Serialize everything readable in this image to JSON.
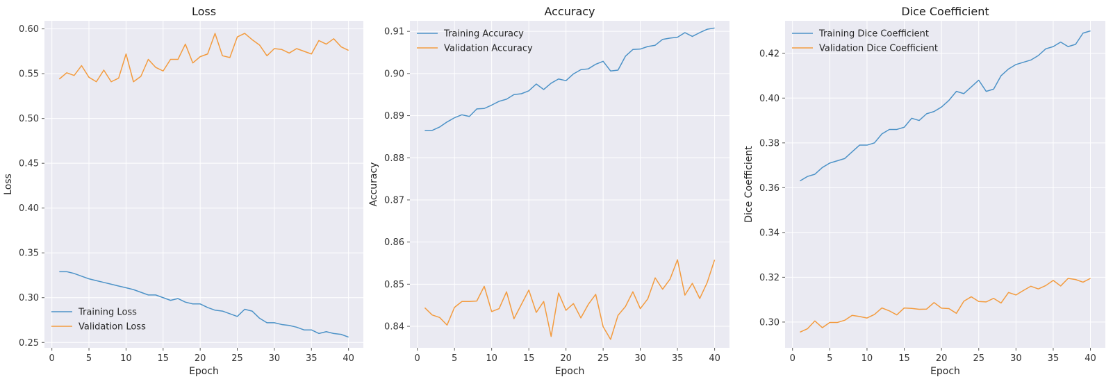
{
  "colors": {
    "training": "#4c92c7",
    "validation": "#f39b3e",
    "plot_background": "#eaeaf2",
    "grid": "#ffffff"
  },
  "chart_data": [
    {
      "type": "line",
      "title": "Loss",
      "xlabel": "Epoch",
      "ylabel": "Loss",
      "xlim": [
        -1,
        42
      ],
      "ylim": [
        0.244,
        0.609
      ],
      "xticks": [
        0,
        5,
        10,
        15,
        20,
        25,
        30,
        35,
        40
      ],
      "yticks": [
        0.25,
        0.3,
        0.35,
        0.4,
        0.45,
        0.5,
        0.55,
        0.6
      ],
      "ytick_decimals": 2,
      "grid": true,
      "legend_position": "lower-left",
      "x": [
        1,
        2,
        3,
        4,
        5,
        6,
        7,
        8,
        9,
        10,
        11,
        12,
        13,
        14,
        15,
        16,
        17,
        18,
        19,
        20,
        21,
        22,
        23,
        24,
        25,
        26,
        27,
        28,
        29,
        30,
        31,
        32,
        33,
        34,
        35,
        36,
        37,
        38,
        39,
        40
      ],
      "series": [
        {
          "name": "Training Loss",
          "color_key": "training",
          "values": [
            0.329,
            0.329,
            0.327,
            0.324,
            0.321,
            0.319,
            0.317,
            0.315,
            0.313,
            0.311,
            0.309,
            0.306,
            0.303,
            0.303,
            0.3,
            0.297,
            0.299,
            0.295,
            0.293,
            0.293,
            0.289,
            0.286,
            0.285,
            0.282,
            0.279,
            0.287,
            0.285,
            0.277,
            0.272,
            0.272,
            0.27,
            0.269,
            0.267,
            0.264,
            0.264,
            0.26,
            0.262,
            0.26,
            0.259,
            0.256
          ]
        },
        {
          "name": "Validation Loss",
          "color_key": "validation",
          "values": [
            0.544,
            0.551,
            0.548,
            0.559,
            0.546,
            0.541,
            0.554,
            0.541,
            0.545,
            0.572,
            0.541,
            0.547,
            0.566,
            0.557,
            0.553,
            0.566,
            0.566,
            0.583,
            0.562,
            0.569,
            0.572,
            0.595,
            0.57,
            0.568,
            0.591,
            0.595,
            0.588,
            0.582,
            0.57,
            0.578,
            0.577,
            0.573,
            0.578,
            0.575,
            0.572,
            0.587,
            0.583,
            0.589,
            0.58,
            0.576
          ]
        }
      ]
    },
    {
      "type": "line",
      "title": "Accuracy",
      "xlabel": "Epoch",
      "ylabel": "Accuracy",
      "xlim": [
        -1,
        42
      ],
      "ylim": [
        0.8349,
        0.9125
      ],
      "xticks": [
        0,
        5,
        10,
        15,
        20,
        25,
        30,
        35,
        40
      ],
      "yticks": [
        0.84,
        0.85,
        0.86,
        0.87,
        0.88,
        0.89,
        0.9,
        0.91
      ],
      "ytick_decimals": 2,
      "grid": true,
      "legend_position": "upper-left",
      "x": [
        1,
        2,
        3,
        4,
        5,
        6,
        7,
        8,
        9,
        10,
        11,
        12,
        13,
        14,
        15,
        16,
        17,
        18,
        19,
        20,
        21,
        22,
        23,
        24,
        25,
        26,
        27,
        28,
        29,
        30,
        31,
        32,
        33,
        34,
        35,
        36,
        37,
        38,
        39,
        40
      ],
      "series": [
        {
          "name": "Training Accuracy",
          "color_key": "training",
          "values": [
            0.8865,
            0.8865,
            0.8873,
            0.8885,
            0.8895,
            0.8902,
            0.8898,
            0.8916,
            0.8917,
            0.8925,
            0.8934,
            0.8939,
            0.895,
            0.8952,
            0.8959,
            0.8975,
            0.8962,
            0.8977,
            0.8987,
            0.8983,
            0.8999,
            0.9009,
            0.9011,
            0.9022,
            0.9029,
            0.9006,
            0.9008,
            0.9041,
            0.9057,
            0.9058,
            0.9064,
            0.9067,
            0.9081,
            0.9084,
            0.9086,
            0.9097,
            0.9088,
            0.9097,
            0.9105,
            0.9108
          ]
        },
        {
          "name": "Validation Accuracy",
          "color_key": "validation",
          "values": [
            0.8444,
            0.8427,
            0.8421,
            0.8403,
            0.8445,
            0.8459,
            0.8459,
            0.846,
            0.8495,
            0.8435,
            0.8442,
            0.8482,
            0.8418,
            0.8452,
            0.8486,
            0.8433,
            0.8459,
            0.8376,
            0.8479,
            0.8438,
            0.8454,
            0.842,
            0.8452,
            0.8476,
            0.8399,
            0.8369,
            0.8426,
            0.8447,
            0.8482,
            0.8442,
            0.8465,
            0.8515,
            0.8488,
            0.8512,
            0.8558,
            0.8474,
            0.8502,
            0.8466,
            0.8504,
            0.8558
          ]
        }
      ]
    },
    {
      "type": "line",
      "title": "Dice Coefficient",
      "xlabel": "Epoch",
      "ylabel": "Dice Coefficient",
      "xlim": [
        -1,
        42
      ],
      "ylim": [
        0.2885,
        0.4345
      ],
      "xticks": [
        0,
        5,
        10,
        15,
        20,
        25,
        30,
        35,
        40
      ],
      "yticks": [
        0.3,
        0.32,
        0.34,
        0.36,
        0.38,
        0.4,
        0.42
      ],
      "ytick_decimals": 2,
      "grid": true,
      "legend_position": "upper-left",
      "x": [
        1,
        2,
        3,
        4,
        5,
        6,
        7,
        8,
        9,
        10,
        11,
        12,
        13,
        14,
        15,
        16,
        17,
        18,
        19,
        20,
        21,
        22,
        23,
        24,
        25,
        26,
        27,
        28,
        29,
        30,
        31,
        32,
        33,
        34,
        35,
        36,
        37,
        38,
        39,
        40
      ],
      "series": [
        {
          "name": "Training Dice Coefficient",
          "color_key": "training",
          "values": [
            0.363,
            0.365,
            0.366,
            0.369,
            0.371,
            0.372,
            0.373,
            0.376,
            0.379,
            0.379,
            0.38,
            0.384,
            0.386,
            0.386,
            0.387,
            0.391,
            0.39,
            0.393,
            0.394,
            0.396,
            0.399,
            0.403,
            0.402,
            0.405,
            0.408,
            0.403,
            0.404,
            0.41,
            0.413,
            0.415,
            0.416,
            0.417,
            0.419,
            0.422,
            0.423,
            0.425,
            0.423,
            0.424,
            0.429,
            0.43
          ]
        },
        {
          "name": "Validation Dice Coefficient",
          "color_key": "validation",
          "values": [
            0.2955,
            0.297,
            0.3005,
            0.2975,
            0.2998,
            0.2998,
            0.3008,
            0.303,
            0.3025,
            0.3018,
            0.3034,
            0.3063,
            0.305,
            0.3032,
            0.3063,
            0.3061,
            0.3057,
            0.3058,
            0.3087,
            0.3062,
            0.306,
            0.3039,
            0.3093,
            0.3113,
            0.3092,
            0.309,
            0.3106,
            0.3085,
            0.3132,
            0.3121,
            0.3141,
            0.316,
            0.3148,
            0.3163,
            0.3186,
            0.3161,
            0.3195,
            0.319,
            0.3178,
            0.3195
          ]
        }
      ]
    }
  ]
}
